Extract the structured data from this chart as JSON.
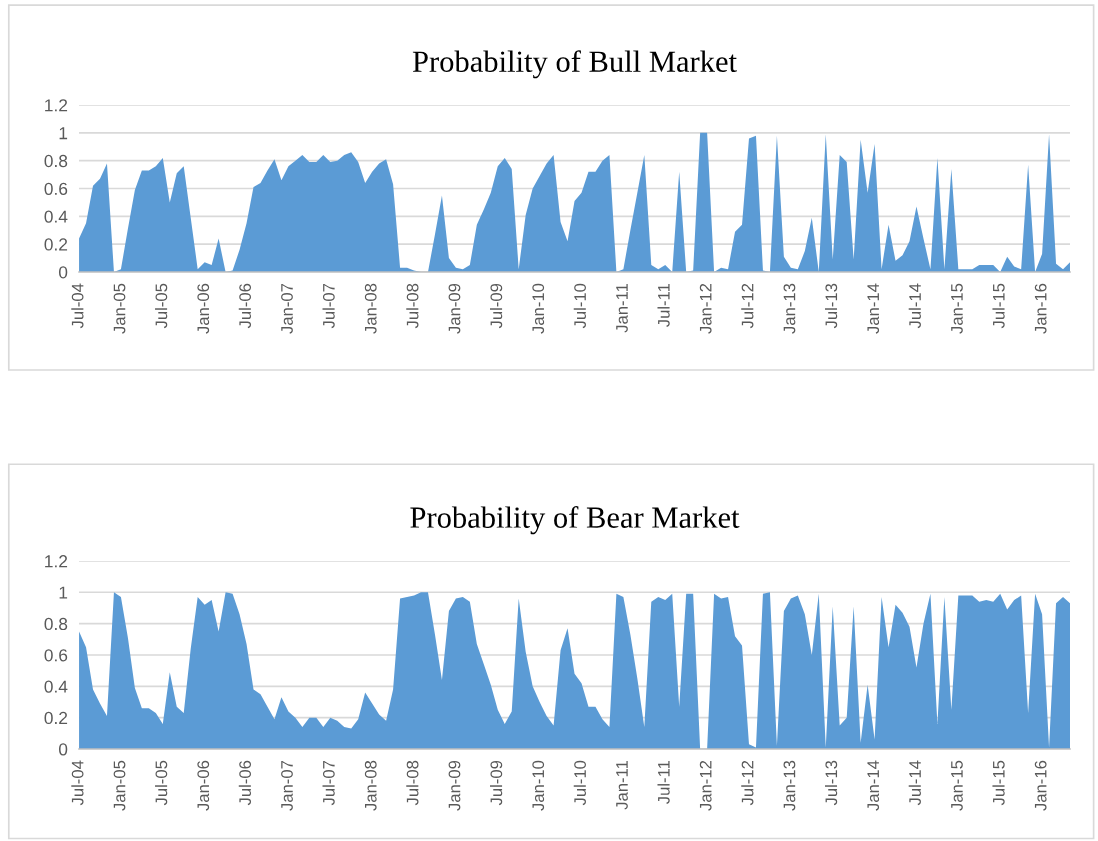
{
  "chart_data": [
    {
      "type": "area",
      "title": "Probability of Bull Market",
      "categories": [
        "Jul-04",
        null,
        null,
        null,
        null,
        null,
        "Jan-05",
        null,
        null,
        null,
        null,
        null,
        "Jul-05",
        null,
        null,
        null,
        null,
        null,
        "Jan-06",
        null,
        null,
        null,
        null,
        null,
        "Jul-06",
        null,
        null,
        null,
        null,
        null,
        "Jan-07",
        null,
        null,
        null,
        null,
        null,
        "Jul-07",
        null,
        null,
        null,
        null,
        null,
        "Jan-08",
        null,
        null,
        null,
        null,
        null,
        "Jul-08",
        null,
        null,
        null,
        null,
        null,
        "Jan-09",
        null,
        null,
        null,
        null,
        null,
        "Jul-09",
        null,
        null,
        null,
        null,
        null,
        "Jan-10",
        null,
        null,
        null,
        null,
        null,
        "Jul-10",
        null,
        null,
        null,
        null,
        null,
        "Jan-11",
        null,
        null,
        null,
        null,
        null,
        "Jul-11",
        null,
        null,
        null,
        null,
        null,
        "Jan-12",
        null,
        null,
        null,
        null,
        null,
        "Jul-12",
        null,
        null,
        null,
        null,
        null,
        "Jan-13",
        null,
        null,
        null,
        null,
        null,
        "Jul-13",
        null,
        null,
        null,
        null,
        null,
        "Jan-14",
        null,
        null,
        null,
        null,
        null,
        "Jul-14",
        null,
        null,
        null,
        null,
        null,
        "Jan-15",
        null,
        null,
        null,
        null,
        null,
        "Jul-15",
        null,
        null,
        null,
        null,
        null,
        "Jan-16",
        null,
        null,
        null,
        null
      ],
      "series": [
        {
          "color": "#5b9bd5",
          "values": [
            0.24,
            0.35,
            0.62,
            0.67,
            0.78,
            0,
            0.02,
            0.31,
            0.59,
            0.73,
            0.73,
            0.76,
            0.82,
            0.5,
            0.71,
            0.76,
            0.39,
            0.02,
            0.07,
            0.05,
            0.24,
            0,
            0.01,
            0.16,
            0.35,
            0.61,
            0.64,
            0.73,
            0.81,
            0.66,
            0.76,
            0.8,
            0.84,
            0.79,
            0.79,
            0.84,
            0.79,
            0.8,
            0.84,
            0.86,
            0.79,
            0.64,
            0.72,
            0.78,
            0.81,
            0.63,
            0.03,
            0.03,
            0.01,
            0,
            0,
            0.27,
            0.55,
            0.1,
            0.03,
            0.02,
            0.05,
            0.34,
            0.45,
            0.57,
            0.76,
            0.82,
            0.74,
            0.02,
            0.41,
            0.6,
            0.69,
            0.78,
            0.84,
            0.36,
            0.22,
            0.51,
            0.57,
            0.72,
            0.72,
            0.8,
            0.84,
            0,
            0.02,
            0.3,
            0.57,
            0.84,
            0.05,
            0.02,
            0.05,
            0,
            0.72,
            0,
            0.01,
            1,
            1,
            0,
            0.03,
            0.02,
            0.29,
            0.34,
            0.96,
            0.98,
            0.01,
            0,
            0.98,
            0.11,
            0.03,
            0.02,
            0.15,
            0.39,
            0,
            0.99,
            0.09,
            0.84,
            0.79,
            0.09,
            0.95,
            0.57,
            0.92,
            0.02,
            0.34,
            0.08,
            0.12,
            0.22,
            0.47,
            0.24,
            0.02,
            0.82,
            0.02,
            0.74,
            0.02,
            0.02,
            0.02,
            0.05,
            0.05,
            0.05,
            0,
            0.11,
            0.04,
            0.02,
            0.77,
            0,
            0.13,
            0.99,
            0.06,
            0.02,
            0.07
          ]
        }
      ],
      "ylim": [
        0,
        1.2
      ],
      "yticks": [
        0,
        0.2,
        0.4,
        0.6,
        0.8,
        1,
        1.2
      ],
      "grid": "y"
    },
    {
      "type": "area",
      "title": "Probability of Bear Market",
      "categories": [
        "Jul-04",
        null,
        null,
        null,
        null,
        null,
        "Jan-05",
        null,
        null,
        null,
        null,
        null,
        "Jul-05",
        null,
        null,
        null,
        null,
        null,
        "Jan-06",
        null,
        null,
        null,
        null,
        null,
        "Jul-06",
        null,
        null,
        null,
        null,
        null,
        "Jan-07",
        null,
        null,
        null,
        null,
        null,
        "Jul-07",
        null,
        null,
        null,
        null,
        null,
        "Jan-08",
        null,
        null,
        null,
        null,
        null,
        "Jul-08",
        null,
        null,
        null,
        null,
        null,
        "Jan-09",
        null,
        null,
        null,
        null,
        null,
        "Jul-09",
        null,
        null,
        null,
        null,
        null,
        "Jan-10",
        null,
        null,
        null,
        null,
        null,
        "Jul-10",
        null,
        null,
        null,
        null,
        null,
        "Jan-11",
        null,
        null,
        null,
        null,
        null,
        "Jul-11",
        null,
        null,
        null,
        null,
        null,
        "Jan-12",
        null,
        null,
        null,
        null,
        null,
        "Jul-12",
        null,
        null,
        null,
        null,
        null,
        "Jan-13",
        null,
        null,
        null,
        null,
        null,
        "Jul-13",
        null,
        null,
        null,
        null,
        null,
        "Jan-14",
        null,
        null,
        null,
        null,
        null,
        "Jul-14",
        null,
        null,
        null,
        null,
        null,
        "Jan-15",
        null,
        null,
        null,
        null,
        null,
        "Jul-15",
        null,
        null,
        null,
        null,
        null,
        "Jan-16",
        null,
        null,
        null,
        null
      ],
      "series": [
        {
          "color": "#5b9bd5",
          "values": [
            0.75,
            0.65,
            0.38,
            0.29,
            0.21,
            1,
            0.97,
            0.71,
            0.39,
            0.26,
            0.26,
            0.23,
            0.16,
            0.49,
            0.27,
            0.23,
            0.64,
            0.97,
            0.92,
            0.95,
            0.75,
            1,
            0.99,
            0.86,
            0.67,
            0.38,
            0.35,
            0.27,
            0.19,
            0.33,
            0.24,
            0.2,
            0.14,
            0.2,
            0.2,
            0.14,
            0.2,
            0.18,
            0.14,
            0.13,
            0.19,
            0.36,
            0.29,
            0.22,
            0.18,
            0.38,
            0.96,
            0.97,
            0.98,
            1,
            1,
            0.73,
            0.44,
            0.88,
            0.96,
            0.97,
            0.94,
            0.67,
            0.54,
            0.41,
            0.25,
            0.16,
            0.24,
            0.96,
            0.62,
            0.4,
            0.3,
            0.21,
            0.15,
            0.63,
            0.77,
            0.48,
            0.42,
            0.27,
            0.27,
            0.19,
            0.14,
            0.99,
            0.97,
            0.73,
            0.45,
            0.14,
            0.94,
            0.97,
            0.95,
            0.99,
            0.27,
            0.99,
            0.99,
            0,
            0,
            0.99,
            0.96,
            0.97,
            0.72,
            0.66,
            0.03,
            0.01,
            0.99,
            1,
            0.02,
            0.88,
            0.96,
            0.98,
            0.86,
            0.6,
            0.99,
            0.01,
            0.91,
            0.15,
            0.2,
            0.91,
            0.04,
            0.41,
            0.06,
            0.97,
            0.65,
            0.92,
            0.87,
            0.78,
            0.52,
            0.8,
            0.99,
            0.16,
            0.97,
            0.25,
            0.98,
            0.98,
            0.98,
            0.94,
            0.95,
            0.94,
            0.99,
            0.89,
            0.95,
            0.98,
            0.23,
            0.99,
            0.86,
            0.01,
            0.93,
            0.97,
            0.93
          ]
        }
      ],
      "ylim": [
        0,
        1.2
      ],
      "yticks": [
        0,
        0.2,
        0.4,
        0.6,
        0.8,
        1,
        1.2
      ],
      "grid": "y"
    }
  ]
}
